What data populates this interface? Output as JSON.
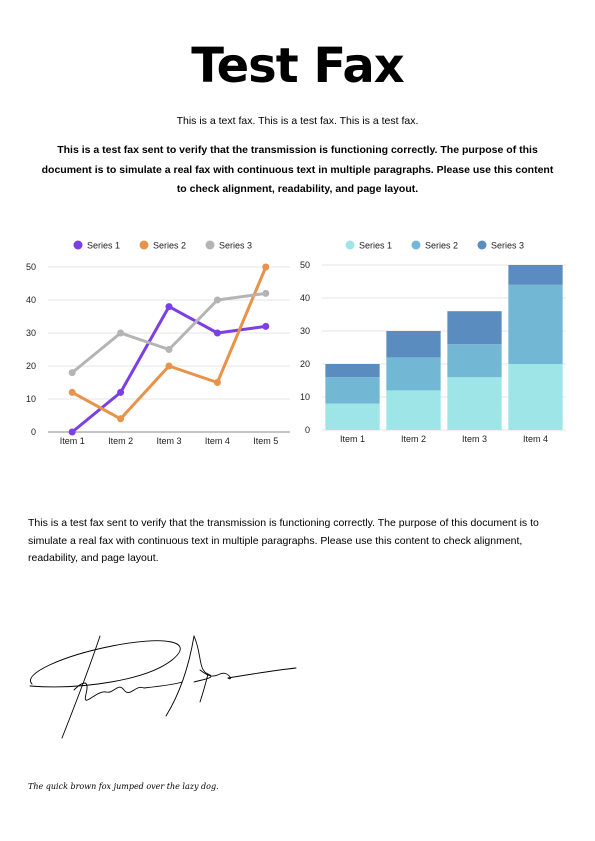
{
  "document": {
    "title": "Test Fax",
    "subtitle": "This is a text fax. This is a test fax. This is a test fax.",
    "bold_paragraph": "This is a test fax sent to verify that the transmission is functioning correctly. The purpose of this document is to simulate a real fax with continuous text in multiple paragraphs. Please use this content to check alignment, readability, and page layout.",
    "paragraph": "This is a test fax sent to verify that the transmission is functioning correctly. The purpose of this document is to simulate a real fax with continuous text in multiple paragraphs. Please use this content to check alignment, readability, and page layout.",
    "signature_caption": "The quick brown fox jumped over the lazy dog."
  },
  "chart_data": [
    {
      "type": "line",
      "categories": [
        "Item 1",
        "Item 2",
        "Item 3",
        "Item 4",
        "Item 5"
      ],
      "series": [
        {
          "name": "Series 1",
          "color": "#7b3fe4",
          "values": [
            0,
            12,
            38,
            30,
            32
          ]
        },
        {
          "name": "Series 2",
          "color": "#e8924a",
          "values": [
            12,
            4,
            20,
            15,
            50
          ]
        },
        {
          "name": "Series 3",
          "color": "#b4b4b4",
          "values": [
            18,
            30,
            25,
            40,
            42
          ]
        }
      ],
      "ylim": [
        0,
        50
      ],
      "yticks": [
        0,
        10,
        20,
        30,
        40,
        50
      ],
      "grid": true,
      "legend": "top-center"
    },
    {
      "type": "bar",
      "stacked": true,
      "categories": [
        "Item 1",
        "Item 2",
        "Item 3",
        "Item 4"
      ],
      "series": [
        {
          "name": "Series 1",
          "color": "#9ee5e8",
          "values": [
            8,
            12,
            16,
            20
          ]
        },
        {
          "name": "Series 2",
          "color": "#72b7d4",
          "values": [
            8,
            10,
            10,
            24
          ]
        },
        {
          "name": "Series 3",
          "color": "#5a8cbf",
          "values": [
            4,
            8,
            10,
            6
          ]
        }
      ],
      "ylim": [
        0,
        50
      ],
      "yticks": [
        0,
        10,
        20,
        30,
        40,
        50
      ],
      "grid": true,
      "legend": "top-center"
    }
  ]
}
